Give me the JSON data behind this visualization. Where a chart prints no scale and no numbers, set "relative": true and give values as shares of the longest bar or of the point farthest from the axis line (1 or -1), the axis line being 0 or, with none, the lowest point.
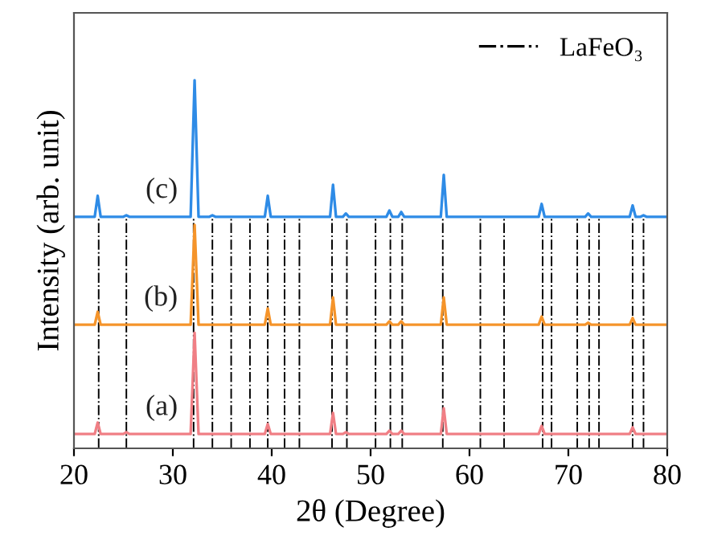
{
  "chart_data": {
    "type": "line",
    "relative": true,
    "xlabel": "2θ (Degree)",
    "ylabel": "Intensity (arb. unit)",
    "xlim": [
      20,
      80
    ],
    "xticks": [
      20,
      30,
      40,
      50,
      60,
      70,
      80
    ],
    "tick_labels": "x",
    "grid": false,
    "legend": "top right",
    "marker": "none",
    "line_style": "solid",
    "series": [
      {
        "name": "(c)",
        "color": "#2e8be6",
        "x": [
          20,
          22.1,
          22.4,
          22.7,
          25.0,
          25.3,
          25.6,
          31.8,
          32.2,
          32.6,
          33.7,
          34.0,
          34.3,
          39.3,
          39.6,
          39.9,
          45.9,
          46.2,
          46.5,
          47.2,
          47.5,
          47.8,
          51.6,
          51.9,
          52.2,
          52.8,
          53.1,
          53.4,
          57.1,
          57.4,
          57.7,
          67.0,
          67.3,
          67.6,
          71.7,
          72.0,
          72.3,
          76.2,
          76.5,
          76.8,
          77.3,
          77.6,
          77.9,
          80
        ],
        "values": [
          0.629,
          0.629,
          0.686,
          0.629,
          0.629,
          0.633,
          0.629,
          0.629,
          1.0,
          0.629,
          0.629,
          0.633,
          0.629,
          0.629,
          0.686,
          0.629,
          0.629,
          0.716,
          0.629,
          0.629,
          0.638,
          0.629,
          0.629,
          0.646,
          0.629,
          0.629,
          0.642,
          0.629,
          0.629,
          0.743,
          0.629,
          0.629,
          0.664,
          0.629,
          0.629,
          0.638,
          0.629,
          0.629,
          0.66,
          0.629,
          0.629,
          0.633,
          0.629,
          0.629
        ]
      },
      {
        "name": "(b)",
        "color": "#f5942a",
        "x": [
          20,
          22.1,
          22.4,
          22.7,
          31.8,
          32.2,
          32.6,
          39.3,
          39.6,
          39.9,
          45.9,
          46.2,
          46.5,
          51.6,
          51.9,
          52.2,
          52.8,
          53.1,
          53.4,
          57.1,
          57.4,
          57.7,
          67.0,
          67.3,
          67.6,
          71.7,
          72.0,
          72.3,
          76.2,
          76.5,
          76.8,
          80
        ],
        "values": [
          0.336,
          0.336,
          0.371,
          0.336,
          0.336,
          0.607,
          0.336,
          0.336,
          0.38,
          0.336,
          0.336,
          0.41,
          0.336,
          0.336,
          0.345,
          0.336,
          0.336,
          0.345,
          0.336,
          0.336,
          0.41,
          0.336,
          0.336,
          0.358,
          0.336,
          0.336,
          0.341,
          0.336,
          0.336,
          0.354,
          0.336,
          0.336
        ]
      },
      {
        "name": "(a)",
        "color": "#f07f85",
        "x": [
          20,
          22.1,
          22.4,
          22.7,
          25.0,
          25.3,
          25.6,
          31.8,
          32.2,
          32.6,
          39.3,
          39.6,
          39.9,
          45.9,
          46.2,
          46.5,
          47.2,
          47.5,
          47.8,
          51.6,
          51.9,
          52.2,
          52.8,
          53.1,
          53.4,
          57.1,
          57.4,
          57.7,
          67.0,
          67.3,
          67.6,
          76.2,
          76.5,
          76.8,
          80
        ],
        "values": [
          0.039,
          0.039,
          0.07,
          0.039,
          0.039,
          0.044,
          0.039,
          0.039,
          0.314,
          0.039,
          0.039,
          0.066,
          0.039,
          0.039,
          0.096,
          0.039,
          0.039,
          0.044,
          0.039,
          0.039,
          0.048,
          0.039,
          0.039,
          0.048,
          0.039,
          0.039,
          0.109,
          0.039,
          0.039,
          0.061,
          0.039,
          0.039,
          0.057,
          0.039,
          0.039
        ]
      }
    ],
    "ref_lines": [
      {
        "axis": "x",
        "value": 22.5,
        "label": "LaFeO₃",
        "color": "#000000",
        "line_style": "dashdot"
      },
      {
        "axis": "x",
        "value": 25.3,
        "color": "#000000",
        "line_style": "dashdot"
      },
      {
        "axis": "x",
        "value": 32.1,
        "color": "#000000",
        "line_style": "dashdot"
      },
      {
        "axis": "x",
        "value": 34.0,
        "color": "#000000",
        "line_style": "dashdot"
      },
      {
        "axis": "x",
        "value": 35.9,
        "color": "#000000",
        "line_style": "dashdot"
      },
      {
        "axis": "x",
        "value": 37.8,
        "color": "#000000",
        "line_style": "dashdot"
      },
      {
        "axis": "x",
        "value": 39.6,
        "color": "#000000",
        "line_style": "dashdot"
      },
      {
        "axis": "x",
        "value": 41.3,
        "color": "#000000",
        "line_style": "dashdot"
      },
      {
        "axis": "x",
        "value": 42.8,
        "color": "#000000",
        "line_style": "dashdot"
      },
      {
        "axis": "x",
        "value": 46.1,
        "color": "#000000",
        "line_style": "dashdot"
      },
      {
        "axis": "x",
        "value": 47.6,
        "color": "#000000",
        "line_style": "dashdot"
      },
      {
        "axis": "x",
        "value": 50.5,
        "color": "#000000",
        "line_style": "dashdot"
      },
      {
        "axis": "x",
        "value": 52.0,
        "color": "#000000",
        "line_style": "dashdot"
      },
      {
        "axis": "x",
        "value": 53.2,
        "color": "#000000",
        "line_style": "dashdot"
      },
      {
        "axis": "x",
        "value": 57.3,
        "color": "#000000",
        "line_style": "dashdot"
      },
      {
        "axis": "x",
        "value": 61.1,
        "color": "#000000",
        "line_style": "dashdot"
      },
      {
        "axis": "x",
        "value": 63.5,
        "color": "#000000",
        "line_style": "dashdot"
      },
      {
        "axis": "x",
        "value": 67.4,
        "color": "#000000",
        "line_style": "dashdot"
      },
      {
        "axis": "x",
        "value": 68.3,
        "color": "#000000",
        "line_style": "dashdot"
      },
      {
        "axis": "x",
        "value": 70.9,
        "color": "#000000",
        "line_style": "dashdot"
      },
      {
        "axis": "x",
        "value": 72.1,
        "color": "#000000",
        "line_style": "dashdot"
      },
      {
        "axis": "x",
        "value": 73.1,
        "color": "#000000",
        "line_style": "dashdot"
      },
      {
        "axis": "x",
        "value": 76.5,
        "color": "#000000",
        "line_style": "dashdot"
      },
      {
        "axis": "x",
        "value": 77.6,
        "color": "#000000",
        "line_style": "dashdot"
      }
    ]
  }
}
